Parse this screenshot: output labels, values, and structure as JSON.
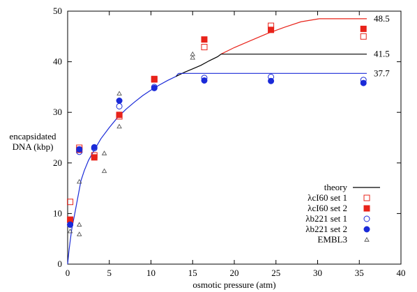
{
  "chart_data": {
    "type": "scatter",
    "xlabel": "osmotic pressure (atm)",
    "ylabel_lines": [
      "encapsidated",
      "DNA (kbp)"
    ],
    "xlim": [
      0,
      40
    ],
    "ylim": [
      0,
      50
    ],
    "xticks": [
      0,
      5,
      10,
      15,
      20,
      25,
      30,
      35,
      40
    ],
    "yticks": [
      0,
      10,
      20,
      30,
      40,
      50
    ],
    "grid": false,
    "legend_position": "bottom-right",
    "theory": {
      "name": "theory",
      "curve": [
        [
          0,
          0
        ],
        [
          0.15,
          2.5
        ],
        [
          0.3,
          4.5
        ],
        [
          0.5,
          7.0
        ],
        [
          0.8,
          9.5
        ],
        [
          1.2,
          13.0
        ],
        [
          1.6,
          16.5
        ],
        [
          2.0,
          18.5
        ],
        [
          2.5,
          20.5
        ],
        [
          3.0,
          22.0
        ],
        [
          4.0,
          24.8
        ],
        [
          5.0,
          27.0
        ],
        [
          6.0,
          29.0
        ],
        [
          7.0,
          30.6
        ],
        [
          8.0,
          32.0
        ],
        [
          9.0,
          33.3
        ],
        [
          10.0,
          34.4
        ],
        [
          11.0,
          35.4
        ],
        [
          12.0,
          36.3
        ],
        [
          13.0,
          37.1
        ],
        [
          14.0,
          37.9
        ],
        [
          15.0,
          38.6
        ],
        [
          16.0,
          39.3
        ],
        [
          17.0,
          40.2
        ],
        [
          18.0,
          41.0
        ],
        [
          18.4,
          41.5
        ],
        [
          20.0,
          42.8
        ],
        [
          22.0,
          44.2
        ],
        [
          24.0,
          45.6
        ],
        [
          26.0,
          46.8
        ],
        [
          28.0,
          47.9
        ],
        [
          30.2,
          48.5
        ]
      ],
      "plateaus": [
        {
          "value": 48.5,
          "label": "48.5",
          "color": "#e8231a",
          "from": 30.2,
          "to": 35.9
        },
        {
          "value": 41.5,
          "label": "41.5",
          "color": "#000000",
          "from": 18.4,
          "to": 35.9
        },
        {
          "value": 37.7,
          "label": "37.7",
          "color": "#1a2ad8",
          "from": 13.3,
          "to": 35.9
        }
      ]
    },
    "series": [
      {
        "name": "λcI60 set 1",
        "marker": "square-open",
        "color": "#e8231a",
        "points": [
          [
            0.3,
            12.3
          ],
          [
            1.4,
            23.0
          ],
          [
            3.2,
            21.5
          ],
          [
            6.2,
            29.2
          ],
          [
            10.4,
            36.5
          ],
          [
            16.4,
            42.9
          ],
          [
            24.4,
            47.1
          ],
          [
            35.5,
            45.0
          ]
        ]
      },
      {
        "name": "λcI60 set 2",
        "marker": "square-filled",
        "color": "#e8231a",
        "points": [
          [
            0.3,
            8.8
          ],
          [
            1.4,
            22.6
          ],
          [
            3.2,
            21.1
          ],
          [
            6.2,
            29.5
          ],
          [
            10.4,
            36.6
          ],
          [
            16.4,
            44.4
          ],
          [
            24.4,
            46.3
          ],
          [
            35.5,
            46.5
          ]
        ]
      },
      {
        "name": "λb221 set 1",
        "marker": "circle-open",
        "color": "#1a2ad8",
        "points": [
          [
            0.3,
            7.8
          ],
          [
            1.4,
            22.2
          ],
          [
            3.2,
            22.9
          ],
          [
            6.2,
            31.2
          ],
          [
            10.4,
            35.0
          ],
          [
            16.4,
            36.8
          ],
          [
            24.4,
            37.0
          ],
          [
            35.5,
            36.4
          ]
        ]
      },
      {
        "name": "λb221 set 2",
        "marker": "circle-filled",
        "color": "#1a2ad8",
        "points": [
          [
            0.3,
            7.8
          ],
          [
            1.4,
            22.7
          ],
          [
            3.2,
            23.1
          ],
          [
            6.2,
            32.3
          ],
          [
            10.4,
            34.8
          ],
          [
            16.4,
            36.3
          ],
          [
            24.4,
            36.2
          ],
          [
            35.5,
            35.8
          ]
        ]
      },
      {
        "name": "EMBL3",
        "marker": "triangle-open",
        "color": "#555555",
        "points": [
          [
            0.3,
            6.5
          ],
          [
            1.4,
            16.3
          ],
          [
            1.4,
            7.8
          ],
          [
            1.4,
            5.9
          ],
          [
            4.4,
            21.9
          ],
          [
            4.4,
            18.4
          ],
          [
            6.2,
            33.7
          ],
          [
            6.2,
            27.2
          ],
          [
            15.0,
            41.5
          ],
          [
            15.0,
            40.8
          ]
        ]
      }
    ]
  }
}
